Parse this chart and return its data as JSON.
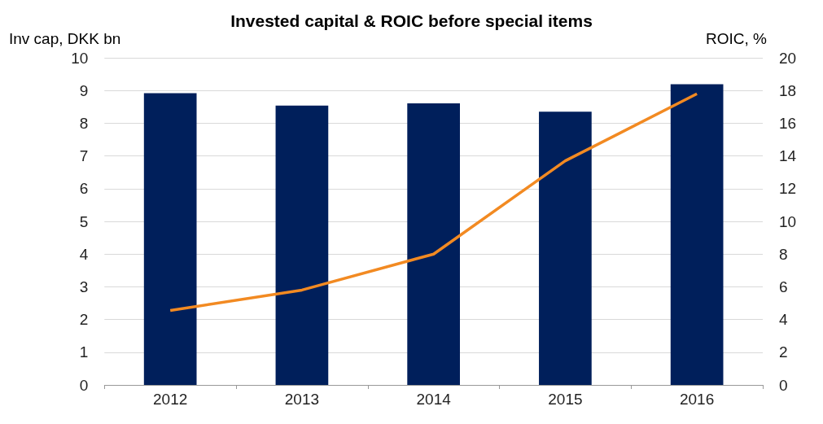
{
  "chart_data": {
    "type": "bar",
    "title": "Invested capital & ROIC before special items",
    "ylabel": "Inv cap, DKK bn",
    "y2label": "ROIC, %",
    "categories": [
      "2012",
      "2013",
      "2014",
      "2015",
      "2016"
    ],
    "series": [
      {
        "color": "#001f5b",
        "values": [
          8.92,
          8.54,
          8.61,
          8.35,
          9.19
        ]
      },
      {
        "type": "line",
        "axis": "y2",
        "color": "#f28a22",
        "values": [
          4.55,
          5.8,
          8.0,
          13.7,
          17.8
        ]
      }
    ],
    "ylim": [
      0,
      10
    ],
    "yticks": [
      0,
      1,
      2,
      3,
      4,
      5,
      6,
      7,
      8,
      9,
      10
    ],
    "y2lim": [
      0,
      20
    ],
    "y2ticks": [
      0,
      2,
      4,
      6,
      8,
      10,
      12,
      14,
      16,
      18,
      20
    ],
    "grid": "y",
    "marker": "none",
    "line_style": "solid"
  }
}
